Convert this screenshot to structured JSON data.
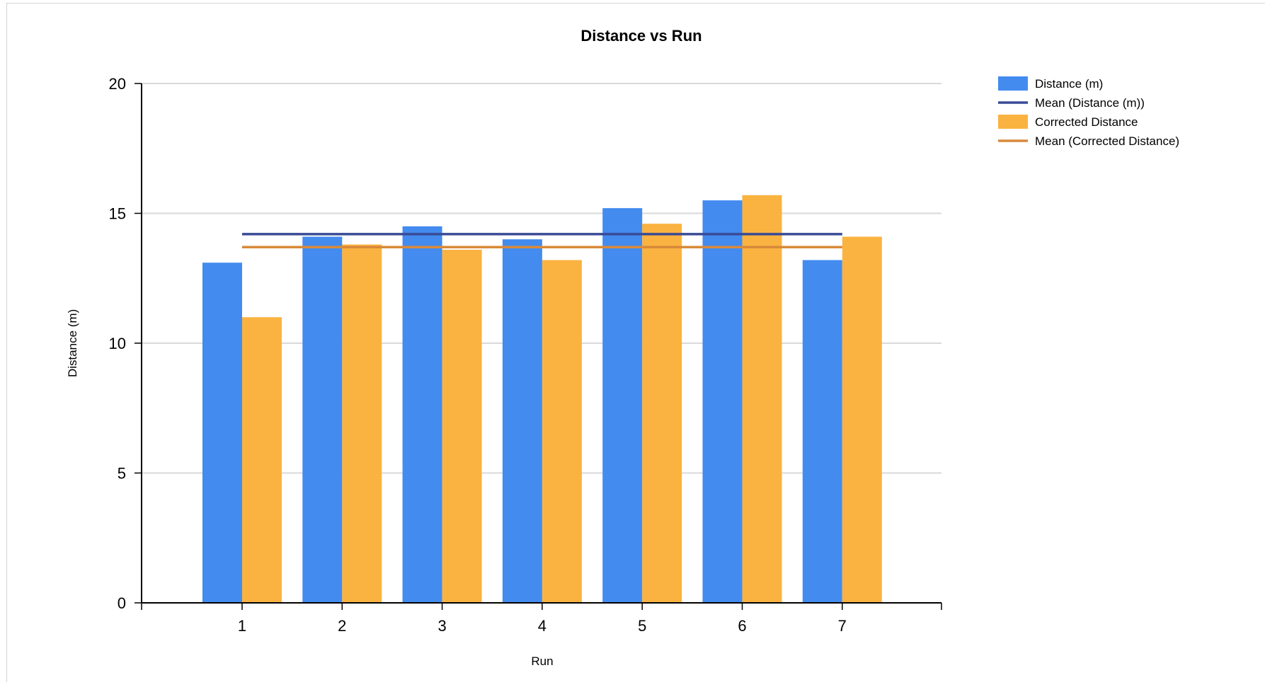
{
  "chart_data": {
    "type": "bar",
    "title": "Distance vs Run",
    "xlabel": "Run",
    "ylabel": "Distance (m)",
    "ylim": [
      0,
      20
    ],
    "yticks": [
      "0",
      "5",
      "10",
      "15",
      "20"
    ],
    "grid": true,
    "legend_position": "right",
    "categories": [
      "1",
      "2",
      "3",
      "4",
      "5",
      "6",
      "7"
    ],
    "series": [
      {
        "name": "Distance (m)",
        "type": "bar",
        "color": "#438bef",
        "values": [
          13.1,
          14.1,
          14.5,
          14.0,
          15.2,
          15.5,
          13.2
        ]
      },
      {
        "name": "Corrected Distance",
        "type": "bar",
        "color": "#fab340",
        "values": [
          11.0,
          13.8,
          13.6,
          13.2,
          14.6,
          15.7,
          14.1
        ]
      }
    ],
    "mean_lines": [
      {
        "name": "Mean (Distance (m))",
        "color": "#3a4b96",
        "value": 14.2
      },
      {
        "name": "Mean (Corrected Distance)",
        "color": "#d88a3a",
        "value": 13.7
      }
    ],
    "legend": [
      {
        "label": "Distance (m)",
        "kind": "box",
        "color": "#438bef"
      },
      {
        "label": "Mean (Distance (m))",
        "kind": "line",
        "color": "#3a4b96"
      },
      {
        "label": "Corrected Distance",
        "kind": "box",
        "color": "#fab340"
      },
      {
        "label": "Mean (Corrected Distance)",
        "kind": "line",
        "color": "#d88a3a"
      }
    ]
  }
}
